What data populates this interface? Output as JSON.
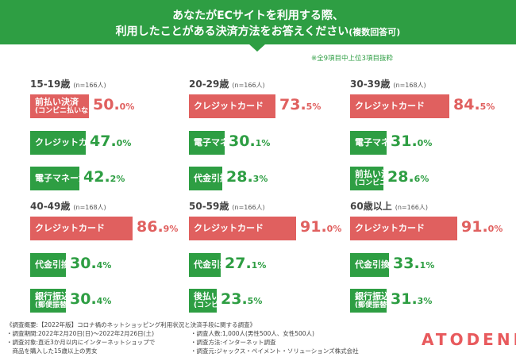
{
  "header": {
    "title_line1": "あなたがECサイトを利用する際、",
    "title_line2": "利用したことがある決済方法をお答えください",
    "title_suffix": "(複数回答可)",
    "note": "※全9項目中上位3項目抜粋"
  },
  "colors": {
    "red": "#e0605f",
    "green": "#2e9e43"
  },
  "chart_data": [
    {
      "type": "bar",
      "age": "15-19歳",
      "n": "(n=166人)",
      "xlim": [
        0,
        100
      ],
      "bars": [
        {
          "label": "前払い決済",
          "sub": "(コンビニ払いなど)",
          "value": 50.0,
          "int": "50.",
          "dec": "0",
          "color": "red"
        },
        {
          "label": "クレジットカード",
          "sub": "",
          "value": 47.0,
          "int": "47.",
          "dec": "0",
          "color": "green"
        },
        {
          "label": "電子マネー決済",
          "sub": "",
          "value": 42.2,
          "int": "42.",
          "dec": "2",
          "color": "green"
        }
      ]
    },
    {
      "type": "bar",
      "age": "20-29歳",
      "n": "(n=166人)",
      "xlim": [
        0,
        100
      ],
      "bars": [
        {
          "label": "クレジットカード",
          "sub": "",
          "value": 73.5,
          "int": "73.",
          "dec": "5",
          "color": "red"
        },
        {
          "label": "電子マネー決済",
          "sub": "",
          "value": 30.1,
          "int": "30.",
          "dec": "1",
          "color": "green"
        },
        {
          "label": "代金引換",
          "sub": "",
          "value": 28.3,
          "int": "28.",
          "dec": "3",
          "color": "green"
        }
      ]
    },
    {
      "type": "bar",
      "age": "30-39歳",
      "n": "(n=168人)",
      "xlim": [
        0,
        100
      ],
      "bars": [
        {
          "label": "クレジットカード",
          "sub": "",
          "value": 84.5,
          "int": "84.",
          "dec": "5",
          "color": "red"
        },
        {
          "label": "電子マネー決済",
          "sub": "",
          "value": 31.0,
          "int": "31.",
          "dec": "0",
          "color": "green"
        },
        {
          "label": "前払い決済",
          "sub": "(コンビニ払いなど)",
          "value": 28.6,
          "int": "28.",
          "dec": "6",
          "color": "green"
        }
      ]
    },
    {
      "type": "bar",
      "age": "40-49歳",
      "n": "(n=168人)",
      "xlim": [
        0,
        100
      ],
      "bars": [
        {
          "label": "クレジットカード",
          "sub": "",
          "value": 86.9,
          "int": "86.",
          "dec": "9",
          "color": "red"
        },
        {
          "label": "代金引換",
          "sub": "",
          "value": 30.4,
          "int": "30.",
          "dec": "4",
          "color": "green"
        },
        {
          "label": "銀行振込",
          "sub": "(郵便振替)",
          "value": 30.4,
          "int": "30.",
          "dec": "4",
          "color": "green"
        }
      ]
    },
    {
      "type": "bar",
      "age": "50-59歳",
      "n": "(n=166人)",
      "xlim": [
        0,
        100
      ],
      "bars": [
        {
          "label": "クレジットカード",
          "sub": "",
          "value": 91.0,
          "int": "91.",
          "dec": "0",
          "color": "red"
        },
        {
          "label": "代金引換",
          "sub": "",
          "value": 27.1,
          "int": "27.",
          "dec": "1",
          "color": "green"
        },
        {
          "label": "後払い決済",
          "sub": "(コンビニ払いなど)",
          "value": 23.5,
          "int": "23.",
          "dec": "5",
          "color": "green"
        }
      ]
    },
    {
      "type": "bar",
      "age": "60歳以上",
      "n": "(n=166人)",
      "xlim": [
        0,
        100
      ],
      "bars": [
        {
          "label": "クレジットカード",
          "sub": "",
          "value": 91.0,
          "int": "91.",
          "dec": "0",
          "color": "red"
        },
        {
          "label": "代金引換",
          "sub": "",
          "value": 33.1,
          "int": "33.",
          "dec": "1",
          "color": "green"
        },
        {
          "label": "銀行振込",
          "sub": "(郵便振替)",
          "value": 31.3,
          "int": "31.",
          "dec": "3",
          "color": "green"
        }
      ]
    }
  ],
  "footer": {
    "line1": "《調査概要:【2022年版】コロナ禍のネットショッピング利用状況と決済手段に関する調査》",
    "line2a": "・調査期間:2022年2月20日(日)〜2022年2月26日(土)",
    "line2b": "・調査人数:1,000人(男性500人、女性500人)",
    "line3a": "・調査対象:直近3か月以内にインターネットショップで",
    "line3b": "・調査方法:インターネット調査",
    "line4a": "　商品を購入した15歳以上の男女",
    "line4b": "・調査元:ジャックス・ペイメント・ソリューションズ株式会社"
  },
  "brand": {
    "logo": "ATODENE"
  },
  "percent_sign": "%"
}
